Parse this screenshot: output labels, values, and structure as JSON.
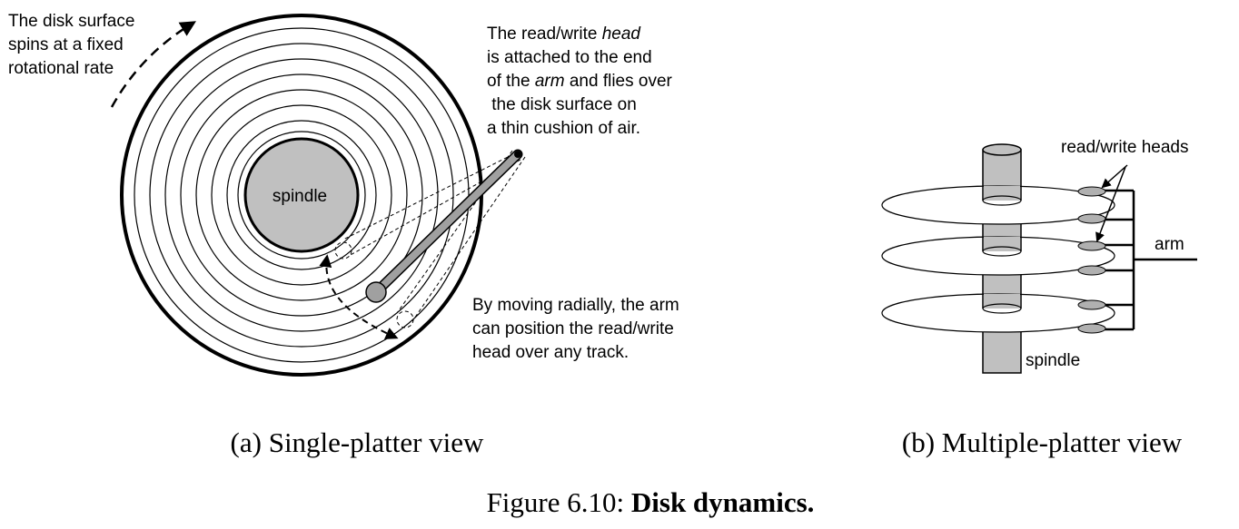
{
  "panel_a": {
    "spin_note": [
      "The disk surface",
      "spins at a fixed",
      "rotational rate"
    ],
    "head_note": {
      "line1_pre": "The read/write ",
      "line1_em": "head",
      "line2": "is attached to the end",
      "line3_pre": "of the ",
      "line3_em": "arm",
      "line3_post": " and flies over",
      "line4": " the disk surface on",
      "line5": "a thin cushion of air."
    },
    "move_note": [
      "By moving radially, the arm",
      "can position the read/write",
      "head over any track."
    ],
    "spindle_label": "spindle",
    "caption": "(a) Single-platter view"
  },
  "panel_b": {
    "heads_label": "read/write heads",
    "arm_label": "arm",
    "spindle_label": "spindle",
    "caption": "(b) Multiple-platter view"
  },
  "figure_caption": {
    "prefix": "Figure 6.10: ",
    "title": "Disk dynamics."
  },
  "colors": {
    "stroke": "#000000",
    "spindle_fill": "#c0c0c0",
    "arm_fill": "#a0a0a0",
    "head_fill": "#b0b0b0",
    "background": "#ffffff"
  }
}
